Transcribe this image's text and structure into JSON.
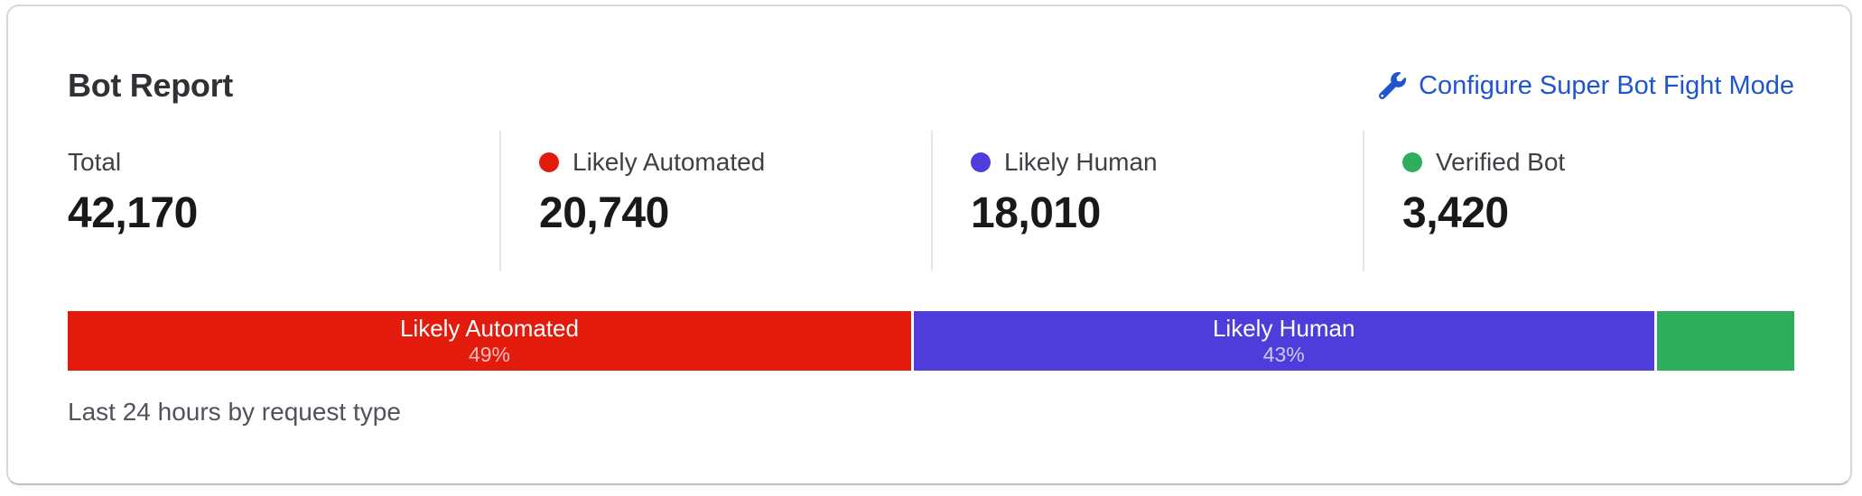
{
  "card": {
    "title": "Bot Report",
    "action": {
      "label": "Configure Super Bot Fight Mode",
      "icon": "wrench-icon",
      "color": "#1f56cf"
    },
    "stats": [
      {
        "label": "Total",
        "value": "42,170",
        "dot_color": null
      },
      {
        "label": "Likely Automated",
        "value": "20,740",
        "dot_color": "#e31b0c"
      },
      {
        "label": "Likely Human",
        "value": "18,010",
        "dot_color": "#4e3ddb"
      },
      {
        "label": "Verified Bot",
        "value": "3,420",
        "dot_color": "#2fae5e"
      }
    ],
    "footer": "Last 24 hours by request type"
  },
  "chart_data": {
    "type": "bar",
    "subtype": "stacked-horizontal",
    "title": "Bot Report",
    "timeframe": "Last 24 hours by request type",
    "total": 42170,
    "categories": [
      "Likely Automated",
      "Likely Human",
      "Verified Bot"
    ],
    "values": [
      20740,
      18010,
      3420
    ],
    "segments": [
      {
        "label": "Likely Automated",
        "percent": 49,
        "percent_label": "49%",
        "show_label": true,
        "color": "#e31b0c"
      },
      {
        "label": "Likely Human",
        "percent": 43,
        "percent_label": "43%",
        "show_label": true,
        "color": "#4e3ddb"
      },
      {
        "label": "Verified Bot",
        "percent": 8,
        "percent_label": "8%",
        "show_label": false,
        "color": "#2fae5e"
      }
    ],
    "legend_position": "above-bar-stat-row",
    "grid": false
  }
}
